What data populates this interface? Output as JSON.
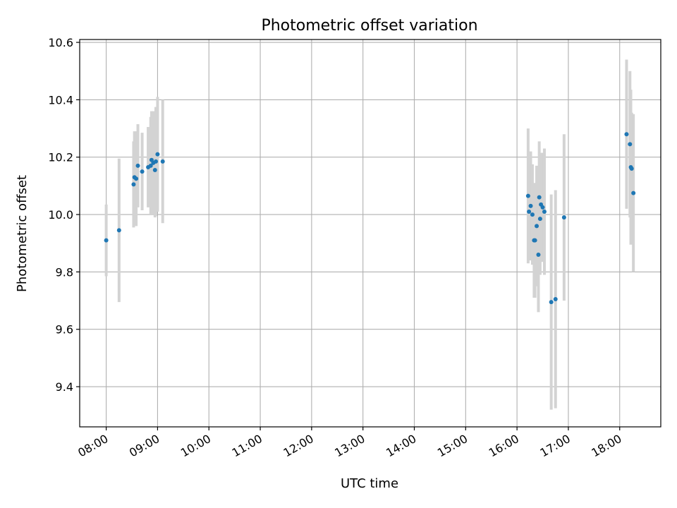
{
  "chart_data": {
    "type": "scatter",
    "title": "Photometric offset variation",
    "xlabel": "UTC time",
    "ylabel": "Photometric offset",
    "x_tick_labels": [
      "08:00",
      "09:00",
      "10:00",
      "11:00",
      "12:00",
      "13:00",
      "14:00",
      "15:00",
      "16:00",
      "17:00",
      "18:00"
    ],
    "y_tick_labels": [
      "9.4",
      "9.6",
      "9.8",
      "10.0",
      "10.2",
      "10.4",
      "10.6"
    ],
    "y_ticks": [
      9.4,
      9.6,
      9.8,
      10.0,
      10.2,
      10.4,
      10.6
    ],
    "x_ticks": [
      "08:00",
      "09:00",
      "10:00",
      "11:00",
      "12:00",
      "13:00",
      "14:00",
      "15:00",
      "16:00",
      "17:00",
      "18:00"
    ],
    "xlim": [
      "07:29",
      "18:48"
    ],
    "ylim": [
      9.26,
      10.61
    ],
    "grid": true,
    "marker_color": "#1f77b4",
    "errorbar_color": "#d3d3d3",
    "points": [
      {
        "x": "08:00",
        "y": 9.91,
        "yerr": 0.125
      },
      {
        "x": "08:15",
        "y": 9.945,
        "yerr": 0.25
      },
      {
        "x": "08:32",
        "y": 10.105,
        "yerr": 0.15
      },
      {
        "x": "08:33",
        "y": 10.13,
        "yerr": 0.16
      },
      {
        "x": "08:35",
        "y": 10.125,
        "yerr": 0.165
      },
      {
        "x": "08:37",
        "y": 10.17,
        "yerr": 0.145
      },
      {
        "x": "08:42",
        "y": 10.15,
        "yerr": 0.135
      },
      {
        "x": "08:49",
        "y": 10.165,
        "yerr": 0.14
      },
      {
        "x": "08:52",
        "y": 10.17,
        "yerr": 0.17
      },
      {
        "x": "08:53",
        "y": 10.19,
        "yerr": 0.17
      },
      {
        "x": "08:55",
        "y": 10.18,
        "yerr": 0.18
      },
      {
        "x": "08:57",
        "y": 10.155,
        "yerr": 0.165
      },
      {
        "x": "08:58",
        "y": 10.185,
        "yerr": 0.19
      },
      {
        "x": "09:00",
        "y": 10.21,
        "yerr": 0.2
      },
      {
        "x": "09:06",
        "y": 10.185,
        "yerr": 0.215
      },
      {
        "x": "16:13",
        "y": 10.065,
        "yerr": 0.235
      },
      {
        "x": "16:14",
        "y": 10.01,
        "yerr": 0.165
      },
      {
        "x": "16:16",
        "y": 10.03,
        "yerr": 0.19
      },
      {
        "x": "16:18",
        "y": 10.0,
        "yerr": 0.175
      },
      {
        "x": "16:20",
        "y": 9.91,
        "yerr": 0.2
      },
      {
        "x": "16:21",
        "y": 9.91,
        "yerr": 0.2
      },
      {
        "x": "16:23",
        "y": 9.96,
        "yerr": 0.21
      },
      {
        "x": "16:25",
        "y": 9.86,
        "yerr": 0.2
      },
      {
        "x": "16:26",
        "y": 10.06,
        "yerr": 0.195
      },
      {
        "x": "16:27",
        "y": 9.985,
        "yerr": 0.195
      },
      {
        "x": "16:28",
        "y": 10.035,
        "yerr": 0.18
      },
      {
        "x": "16:30",
        "y": 10.025,
        "yerr": 0.19
      },
      {
        "x": "16:32",
        "y": 10.01,
        "yerr": 0.22
      },
      {
        "x": "16:40",
        "y": 9.695,
        "yerr": 0.375
      },
      {
        "x": "16:45",
        "y": 9.705,
        "yerr": 0.38
      },
      {
        "x": "16:55",
        "y": 9.99,
        "yerr": 0.29
      },
      {
        "x": "18:08",
        "y": 10.28,
        "yerr": 0.26
      },
      {
        "x": "18:12",
        "y": 10.245,
        "yerr": 0.255
      },
      {
        "x": "18:13",
        "y": 10.165,
        "yerr": 0.27
      },
      {
        "x": "18:14",
        "y": 10.16,
        "yerr": 0.195
      },
      {
        "x": "18:16",
        "y": 10.075,
        "yerr": 0.275
      }
    ]
  }
}
